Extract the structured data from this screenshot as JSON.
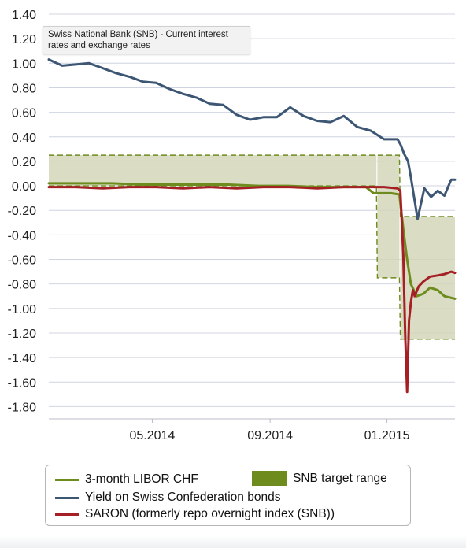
{
  "tooltip": {
    "text": "Swiss National Bank (SNB) - Current interest rates and exchange rates"
  },
  "chart_data": {
    "type": "line",
    "title": "",
    "xlabel": "",
    "ylabel": "",
    "ylim": [
      -1.9,
      1.4
    ],
    "y_ticks": [
      1.4,
      1.2,
      1.0,
      0.8,
      0.6,
      0.4,
      0.2,
      0.0,
      -0.2,
      -0.4,
      -0.6,
      -0.8,
      -1.0,
      -1.2,
      -1.4,
      -1.6,
      -1.8
    ],
    "y_tick_labels": [
      "1.40",
      "1.20",
      "1.00",
      "0.80",
      "0.60",
      "0.40",
      "0.20",
      "0.00",
      "-0.20",
      "-0.40",
      "-0.60",
      "-0.80",
      "-1.00",
      "-1.20",
      "-1.40",
      "-1.60",
      "-1.80"
    ],
    "xlim": [
      "2014-01-13",
      "2015-03-13"
    ],
    "x_ticks": [
      "2014-05-01",
      "2014-09-01",
      "2015-01-01"
    ],
    "x_tick_labels": [
      "05.2014",
      "09.2014",
      "01.2015"
    ],
    "grid": "horizontal",
    "legend_position": "bottom",
    "colors": {
      "libor": "#6e8b1e",
      "bonds": "#3c5674",
      "saron": "#a51f24",
      "range_fill": "#d3d6b8",
      "range_line": "#6e8b1e",
      "grid": "#d0d4e0"
    },
    "series": [
      {
        "name": "Yield on Swiss Confederation bonds",
        "key": "bonds",
        "x": [
          "2014-01-13",
          "2014-01-27",
          "2014-02-10",
          "2014-02-24",
          "2014-03-10",
          "2014-03-24",
          "2014-04-07",
          "2014-04-21",
          "2014-05-05",
          "2014-05-19",
          "2014-06-02",
          "2014-06-16",
          "2014-06-30",
          "2014-07-14",
          "2014-07-28",
          "2014-08-11",
          "2014-08-25",
          "2014-09-08",
          "2014-09-22",
          "2014-10-06",
          "2014-10-20",
          "2014-11-03",
          "2014-11-17",
          "2014-12-01",
          "2014-12-15",
          "2014-12-29",
          "2015-01-05",
          "2015-01-12",
          "2015-01-15",
          "2015-01-19",
          "2015-01-23",
          "2015-01-26",
          "2015-02-02",
          "2015-02-09",
          "2015-02-16",
          "2015-02-23",
          "2015-03-02",
          "2015-03-09",
          "2015-03-13"
        ],
        "y": [
          1.03,
          0.98,
          0.99,
          1.0,
          0.96,
          0.92,
          0.89,
          0.85,
          0.84,
          0.79,
          0.75,
          0.72,
          0.67,
          0.66,
          0.58,
          0.54,
          0.56,
          0.56,
          0.64,
          0.57,
          0.53,
          0.52,
          0.57,
          0.48,
          0.45,
          0.38,
          0.38,
          0.38,
          0.34,
          0.26,
          0.2,
          0.07,
          -0.27,
          -0.02,
          -0.09,
          -0.04,
          -0.08,
          0.05,
          0.05
        ]
      },
      {
        "name": "3-month LIBOR CHF",
        "key": "libor",
        "x": [
          "2014-01-13",
          "2014-02-15",
          "2014-03-20",
          "2014-04-20",
          "2014-05-20",
          "2014-06-20",
          "2014-07-20",
          "2014-08-20",
          "2014-09-20",
          "2014-10-20",
          "2014-11-20",
          "2014-12-10",
          "2014-12-18",
          "2014-12-22",
          "2015-01-05",
          "2015-01-14",
          "2015-01-18",
          "2015-01-22",
          "2015-01-26",
          "2015-02-01",
          "2015-02-08",
          "2015-02-15",
          "2015-02-23",
          "2015-03-02",
          "2015-03-13"
        ],
        "y": [
          0.02,
          0.02,
          0.02,
          0.01,
          0.01,
          0.01,
          0.01,
          0.0,
          0.0,
          -0.01,
          -0.01,
          -0.01,
          -0.06,
          -0.06,
          -0.06,
          -0.07,
          -0.35,
          -0.6,
          -0.8,
          -0.9,
          -0.88,
          -0.83,
          -0.85,
          -0.9,
          -0.92
        ]
      },
      {
        "name": "SARON (formerly repo overnight index (SNB))",
        "key": "saron",
        "x": [
          "2014-01-13",
          "2014-02-10",
          "2014-03-10",
          "2014-04-07",
          "2014-05-05",
          "2014-06-02",
          "2014-06-30",
          "2014-07-28",
          "2014-08-25",
          "2014-09-22",
          "2014-10-20",
          "2014-11-17",
          "2014-12-15",
          "2014-12-29",
          "2015-01-12",
          "2015-01-15",
          "2015-01-18",
          "2015-01-20",
          "2015-01-22",
          "2015-01-24",
          "2015-01-26",
          "2015-01-28",
          "2015-01-30",
          "2015-02-03",
          "2015-02-08",
          "2015-02-15",
          "2015-02-23",
          "2015-03-02",
          "2015-03-09",
          "2015-03-13"
        ],
        "y": [
          -0.01,
          -0.01,
          -0.02,
          -0.01,
          -0.01,
          -0.02,
          -0.01,
          -0.02,
          -0.01,
          -0.01,
          -0.02,
          -0.01,
          -0.01,
          -0.01,
          -0.02,
          -0.04,
          -0.55,
          -1.2,
          -1.68,
          -1.1,
          -0.95,
          -0.85,
          -0.9,
          -0.82,
          -0.78,
          -0.74,
          -0.73,
          -0.72,
          -0.7,
          -0.71
        ]
      }
    ],
    "target_range": {
      "name": "SNB target range",
      "segments": [
        {
          "x": [
            "2014-01-13",
            "2014-12-21"
          ],
          "low": 0.0,
          "high": 0.25
        },
        {
          "x": [
            "2014-12-22",
            "2015-01-14"
          ],
          "low": -0.75,
          "high": 0.25
        },
        {
          "x": [
            "2015-01-15",
            "2015-03-13"
          ],
          "low": -1.25,
          "high": -0.25
        }
      ]
    }
  },
  "legend": {
    "items": [
      {
        "label": "3-month LIBOR CHF"
      },
      {
        "label": "SNB target range"
      },
      {
        "label": "Yield on Swiss Confederation bonds"
      },
      {
        "label": "SARON (formerly repo overnight index (SNB))"
      }
    ]
  }
}
